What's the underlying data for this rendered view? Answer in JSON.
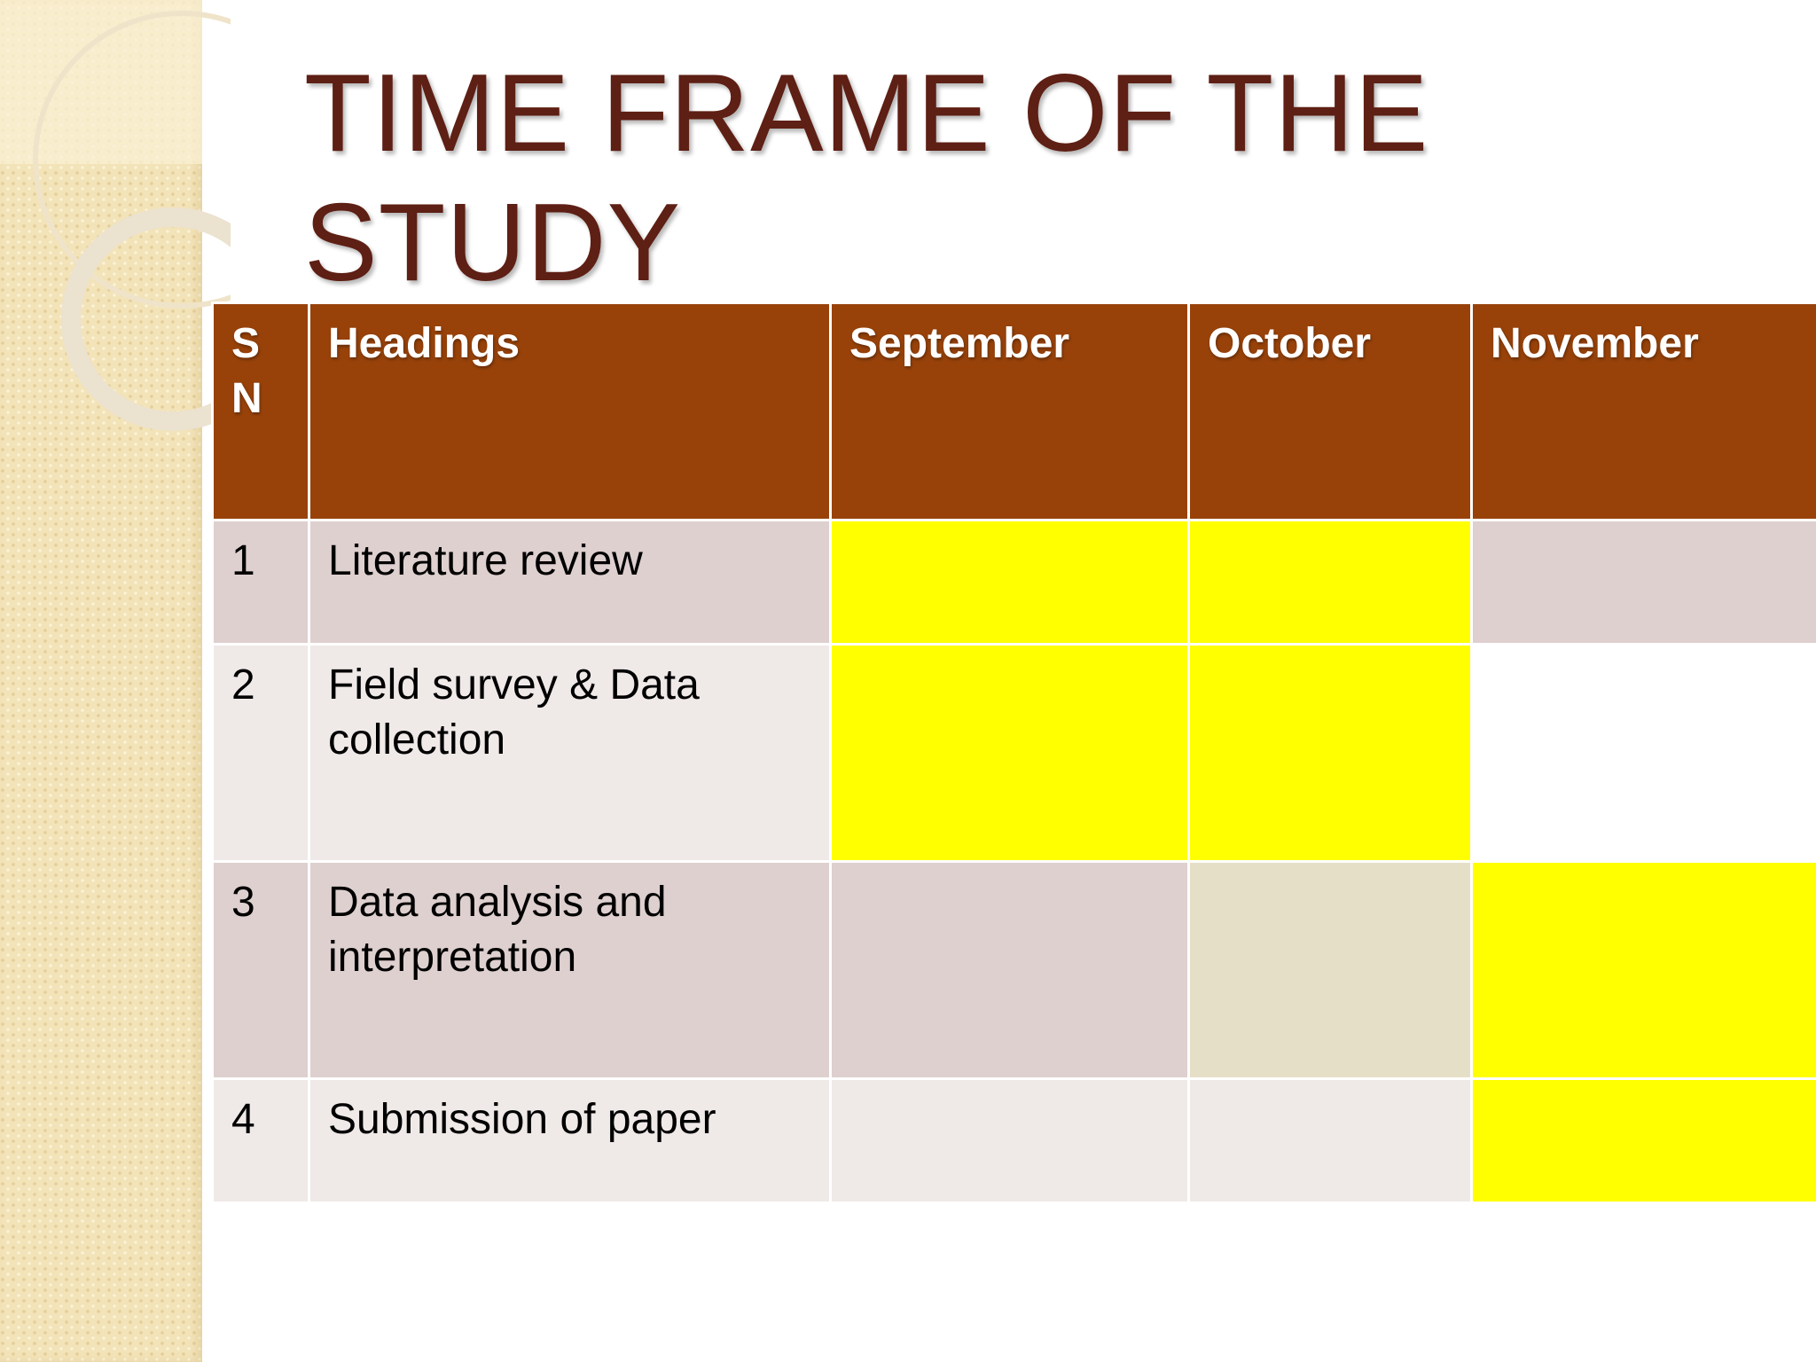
{
  "slide": {
    "title": "TIME FRAME OF THE STUDY"
  },
  "table": {
    "headers": {
      "sn": "S N",
      "headings": "Headings",
      "months": [
        "September",
        "October",
        "November"
      ]
    },
    "rows": [
      {
        "sn": "1",
        "heading": "Literature review",
        "active_months": [
          "September",
          "October"
        ]
      },
      {
        "sn": "2",
        "heading": "Field survey & Data collection",
        "active_months": [
          "September",
          "October"
        ]
      },
      {
        "sn": "3",
        "heading": "Data analysis and interpretation",
        "active_months": [
          "November"
        ]
      },
      {
        "sn": "4",
        "heading": "Submission of paper",
        "active_months": [
          "November"
        ]
      }
    ]
  },
  "colors": {
    "title": "#5e1f14",
    "header_fill": "#98420a",
    "active_month_fill": "#ffff00",
    "row_odd_fill": "#ded0cf",
    "row_even_fill": "#efe9e8",
    "side_band": "#f3e3b8"
  }
}
